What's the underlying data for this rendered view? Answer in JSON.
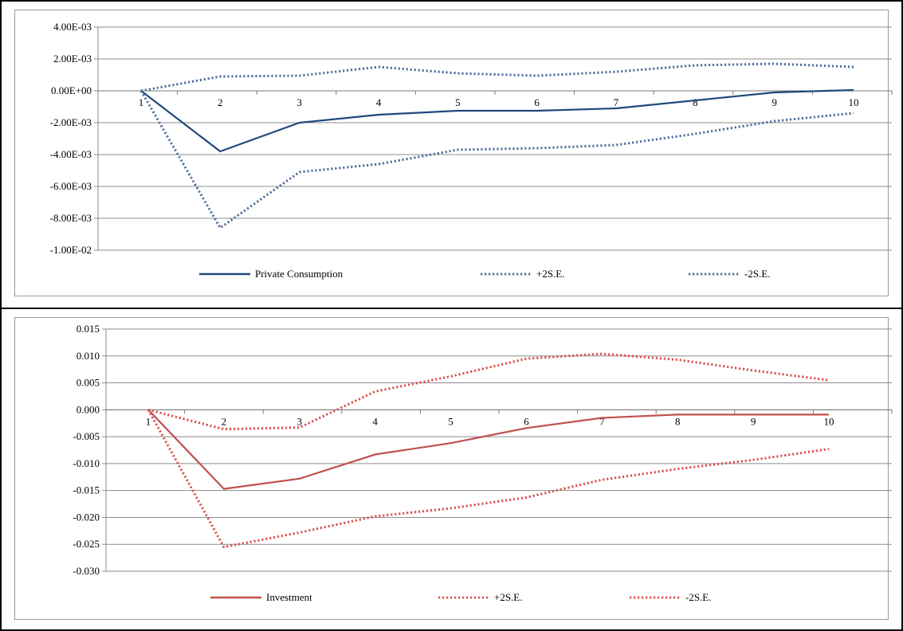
{
  "chart_data": [
    {
      "type": "line",
      "title": "",
      "xlabel": "",
      "ylabel": "",
      "categories": [
        "1",
        "2",
        "3",
        "4",
        "5",
        "6",
        "7",
        "8",
        "9",
        "10"
      ],
      "y_tick_labels": [
        "4.00E-03",
        "2.00E-03",
        "0.00E+00",
        "-2.00E-03",
        "-4.00E-03",
        "-6.00E-03",
        "-8.00E-03",
        "-1.00E-02"
      ],
      "y_ticks": [
        0.004,
        0.002,
        0.0,
        -0.002,
        -0.004,
        -0.006,
        -0.008,
        -0.01
      ],
      "ylim": [
        -0.01,
        0.004
      ],
      "grid": true,
      "legend_position": "bottom",
      "series": [
        {
          "name": "Private Consumption",
          "style": "solid",
          "color": "#1F497D",
          "values": [
            0.0,
            -0.0038,
            -0.002,
            -0.0015,
            -0.00125,
            -0.00125,
            -0.0011,
            -0.0006,
            -0.0001,
            5e-05
          ]
        },
        {
          "name": "+2S.E.",
          "style": "dotted",
          "color": "#4F6F9F",
          "values": [
            0.0,
            0.0009,
            0.00095,
            0.0015,
            0.0011,
            0.00095,
            0.0012,
            0.0016,
            0.0017,
            0.0015
          ]
        },
        {
          "name": "-2S.E.",
          "style": "dotted",
          "color": "#4F6F9F",
          "values": [
            0.0,
            -0.0086,
            -0.0051,
            -0.0046,
            -0.0037,
            -0.0036,
            -0.0034,
            -0.0027,
            -0.0019,
            -0.0014
          ]
        }
      ]
    },
    {
      "type": "line",
      "title": "",
      "xlabel": "",
      "ylabel": "",
      "categories": [
        "1",
        "2",
        "3",
        "4",
        "5",
        "6",
        "7",
        "8",
        "9",
        "10"
      ],
      "y_tick_labels": [
        "0.015",
        "0.010",
        "0.005",
        "0.000",
        "-0.005",
        "-0.010",
        "-0.015",
        "-0.020",
        "-0.025",
        "-0.030"
      ],
      "y_ticks": [
        0.015,
        0.01,
        0.005,
        0.0,
        -0.005,
        -0.01,
        -0.015,
        -0.02,
        -0.025,
        -0.03
      ],
      "ylim": [
        -0.03,
        0.015
      ],
      "grid": true,
      "legend_position": "bottom",
      "series": [
        {
          "name": "Investment",
          "style": "solid",
          "color": "#C0504D",
          "values": [
            0.0,
            -0.0147,
            -0.0128,
            -0.0083,
            -0.0062,
            -0.0034,
            -0.0015,
            -0.0009,
            -0.0009,
            -0.0009
          ]
        },
        {
          "name": "+2S.E.",
          "style": "dotted",
          "color": "#D9534F",
          "values": [
            0.0,
            -0.0036,
            -0.0033,
            0.0034,
            0.0062,
            0.0095,
            0.0104,
            0.0093,
            0.0073,
            0.0055
          ]
        },
        {
          "name": "-2S.E.",
          "style": "dotted",
          "color": "#D9534F",
          "values": [
            0.0,
            -0.0255,
            -0.0228,
            -0.0198,
            -0.0183,
            -0.0163,
            -0.013,
            -0.011,
            -0.0093,
            -0.0073
          ]
        }
      ]
    }
  ]
}
